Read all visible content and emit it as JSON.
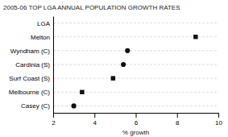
{
  "chart_data": {
    "type": "dot",
    "orientation": "horizontal",
    "title": "2005-06 TOP LGA ANNUAL POPULATION GROWTH RATES",
    "xlabel": "% growth",
    "categories": [
      "LGA",
      "Melton",
      "Wyndham (C)",
      "Cardinia (S)",
      "Surf Coast (S)",
      "Melbourne (C)",
      "Casey (C)"
    ],
    "series": [
      {
        "marker": "square",
        "values": [
          null,
          8.9,
          null,
          null,
          4.9,
          3.4,
          null
        ]
      },
      {
        "marker": "circle",
        "values": [
          null,
          null,
          5.6,
          5.4,
          null,
          null,
          3.0
        ]
      }
    ],
    "color": "#111111",
    "xlim": [
      2,
      10
    ],
    "xticks": [
      2,
      4,
      6,
      8,
      10
    ],
    "grid": true
  }
}
